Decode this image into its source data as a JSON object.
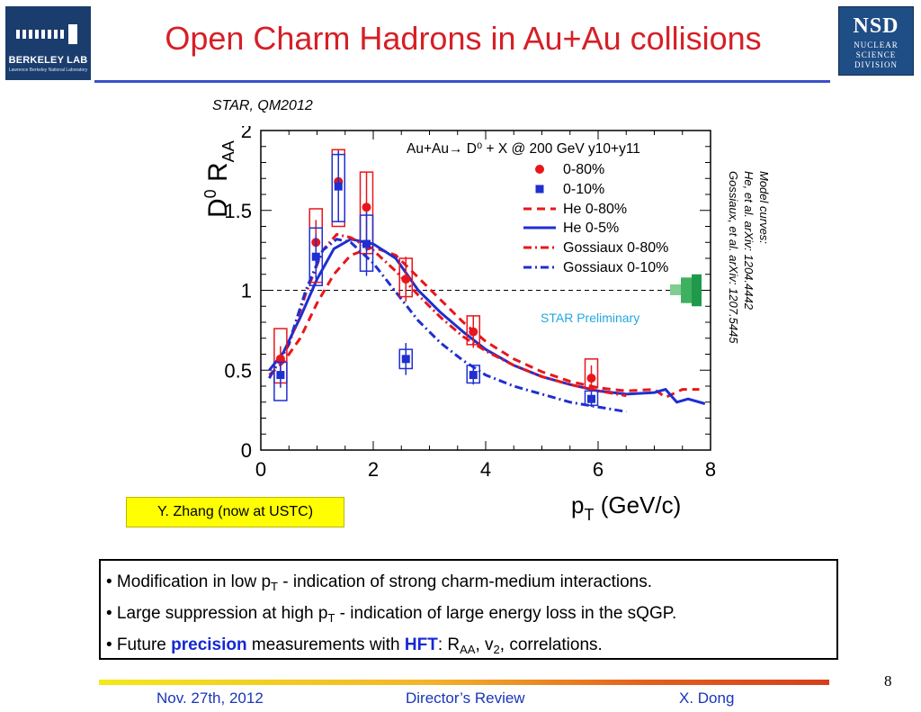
{
  "header": {
    "title": "Open Charm Hadrons in Au+Au collisions",
    "left_logo": {
      "name": "BERKELEY LAB",
      "subtitle": "Lawrence Berkeley National Laboratory"
    },
    "right_logo": {
      "abbr": "NSD",
      "lines": [
        "NUCLEAR",
        "SCIENCE",
        "DIVISION"
      ]
    }
  },
  "chart_source": "STAR, QM2012",
  "model_note": [
    "Model curves:",
    "He, et al. arXiv: 1204.4442",
    "Gossiaux, et al. arXiv: 1207.5445"
  ],
  "credit": "Y. Zhang (now at USTC)",
  "bullets": [
    {
      "prefix": "• Modification in low p",
      "sub": "T",
      "suffix": "   - indication of strong charm-medium interactions."
    },
    {
      "prefix": "• Large suppression at high p",
      "sub": "T",
      "suffix": "  - indication of large energy loss in the sQGP."
    },
    {
      "prefix": "• Future ",
      "em1": "precision",
      "mid": " measurements with ",
      "em2": "HFT",
      "rest1": ":  R",
      "sub1": "AA",
      "rest2": ", v",
      "sub2": "2",
      "rest3": ", correlations."
    }
  ],
  "footer": {
    "date": "Nov. 27th, 2012",
    "event": "Director’s Review",
    "author": "X. Dong",
    "page": "8"
  },
  "colors": {
    "title": "#d61f26",
    "rule": "#3a4fc8",
    "red": "#e8161b",
    "blue": "#1f2fd0",
    "norm_band": "#1f9a4b",
    "prelim": "#22a8e0"
  },
  "chart_data": {
    "type": "scatter",
    "legend_title": "Au+Au→ D⁰ + X @ 200 GeV y10+y11",
    "xlabel": "p_T (GeV/c)",
    "ylabel": "D⁰ R_AA",
    "xlim": [
      0,
      8
    ],
    "ylim": [
      0,
      2
    ],
    "xticks": [
      "0",
      "2",
      "4",
      "6",
      "8"
    ],
    "yticks": [
      "0",
      "0.5",
      "1",
      "1.5",
      "2"
    ],
    "legend_position": "top-right",
    "reference_line": 1,
    "preliminary_label": "STAR Preliminary",
    "series": [
      {
        "name": "0-80%",
        "kind": "points",
        "color": "#e8161b",
        "points": [
          {
            "x": 0.35,
            "y": 0.57,
            "stat": 0.08,
            "sys_lo": 0.42,
            "sys_hi": 0.76
          },
          {
            "x": 0.98,
            "y": 1.3,
            "stat": 0.14,
            "sys_lo": 1.05,
            "sys_hi": 1.51
          },
          {
            "x": 1.38,
            "y": 1.68,
            "stat": 0.2,
            "sys_lo": 1.4,
            "sys_hi": 1.88
          },
          {
            "x": 1.88,
            "y": 1.52,
            "stat": 0.22,
            "sys_lo": 1.23,
            "sys_hi": 1.74
          },
          {
            "x": 2.58,
            "y": 1.07,
            "stat": 0.14,
            "sys_lo": 0.96,
            "sys_hi": 1.2
          },
          {
            "x": 3.78,
            "y": 0.74,
            "stat": 0.1,
            "sys_lo": 0.66,
            "sys_hi": 0.84
          },
          {
            "x": 5.88,
            "y": 0.45,
            "stat": 0.08,
            "sys_lo": 0.39,
            "sys_hi": 0.57
          }
        ]
      },
      {
        "name": "0-10%",
        "kind": "points",
        "color": "#1f2fd0",
        "points": [
          {
            "x": 0.35,
            "y": 0.47,
            "stat": 0.08,
            "sys_lo": 0.31,
            "sys_hi": 0.55
          },
          {
            "x": 0.98,
            "y": 1.21,
            "stat": 0.14,
            "sys_lo": 1.03,
            "sys_hi": 1.39
          },
          {
            "x": 1.38,
            "y": 1.65,
            "stat": 0.22,
            "sys_lo": 1.43,
            "sys_hi": 1.85
          },
          {
            "x": 1.88,
            "y": 1.29,
            "stat": 0.2,
            "sys_lo": 1.12,
            "sys_hi": 1.47
          },
          {
            "x": 2.58,
            "y": 0.57,
            "stat": 0.1,
            "sys_lo": 0.51,
            "sys_hi": 0.63
          },
          {
            "x": 3.78,
            "y": 0.47,
            "stat": 0.06,
            "sys_lo": 0.42,
            "sys_hi": 0.53
          },
          {
            "x": 5.88,
            "y": 0.32,
            "stat": 0.05,
            "sys_lo": 0.28,
            "sys_hi": 0.37
          }
        ]
      },
      {
        "name": "He 0-80%",
        "kind": "curve",
        "color": "#e8161b",
        "dash": "9,6",
        "x": [
          0.15,
          0.4,
          0.7,
          1.0,
          1.3,
          1.6,
          2.0,
          2.4,
          2.8,
          3.2,
          3.6,
          4.0,
          4.5,
          5.0,
          5.5,
          6.0,
          6.5,
          7.0,
          7.2,
          7.5,
          7.8
        ],
        "y": [
          0.47,
          0.55,
          0.7,
          0.92,
          1.1,
          1.22,
          1.27,
          1.22,
          1.08,
          0.94,
          0.8,
          0.68,
          0.57,
          0.49,
          0.43,
          0.39,
          0.37,
          0.38,
          0.33,
          0.38,
          0.38
        ]
      },
      {
        "name": "He 0-5%",
        "kind": "curve",
        "color": "#1f2fd0",
        "dash": "",
        "x": [
          0.15,
          0.4,
          0.7,
          1.0,
          1.3,
          1.6,
          2.0,
          2.4,
          2.8,
          3.2,
          3.6,
          4.0,
          4.5,
          5.0,
          5.5,
          6.0,
          6.5,
          7.0,
          7.2,
          7.4,
          7.6,
          7.9
        ],
        "y": [
          0.5,
          0.61,
          0.83,
          1.07,
          1.26,
          1.32,
          1.29,
          1.2,
          1.0,
          0.86,
          0.74,
          0.63,
          0.53,
          0.46,
          0.41,
          0.37,
          0.35,
          0.36,
          0.38,
          0.3,
          0.32,
          0.29
        ]
      },
      {
        "name": "Gossiaux 0-80%",
        "kind": "curve",
        "color": "#e8161b",
        "dash": "9,4,2,4",
        "x": [
          0.15,
          0.5,
          0.8,
          1.1,
          1.35,
          1.6,
          2.0,
          2.4,
          2.8,
          3.2,
          3.6,
          4.0,
          4.5,
          5.0,
          5.5,
          6.0,
          6.5
        ],
        "y": [
          0.45,
          0.66,
          0.98,
          1.25,
          1.35,
          1.33,
          1.25,
          1.12,
          0.97,
          0.83,
          0.71,
          0.62,
          0.53,
          0.46,
          0.41,
          0.37,
          0.34
        ]
      },
      {
        "name": "Gossiaux 0-10%",
        "kind": "curve",
        "color": "#1f2fd0",
        "dash": "9,4,2,4",
        "x": [
          0.15,
          0.5,
          0.8,
          1.1,
          1.35,
          1.6,
          2.0,
          2.4,
          2.8,
          3.2,
          3.6,
          4.0,
          4.5,
          5.0,
          5.5,
          6.0,
          6.5
        ],
        "y": [
          0.45,
          0.67,
          1.0,
          1.25,
          1.32,
          1.3,
          1.17,
          0.99,
          0.81,
          0.67,
          0.56,
          0.47,
          0.4,
          0.35,
          0.3,
          0.27,
          0.24
        ]
      }
    ]
  }
}
